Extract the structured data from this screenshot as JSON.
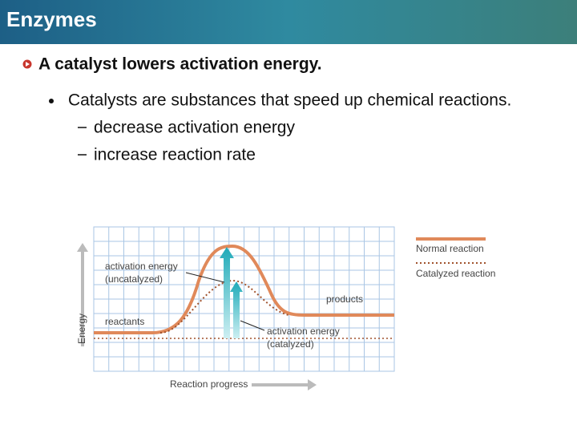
{
  "header": {
    "title": "Enzymes"
  },
  "heading": "A catalyst lowers activation energy.",
  "bullets": [
    {
      "text": "Catalysts are substances that speed up chemical reactions.",
      "sub": [
        "decrease activation energy",
        "increase reaction rate"
      ]
    }
  ],
  "figure": {
    "y_axis": "Energy",
    "x_axis": "Reaction progress",
    "uncatalyzed_label": [
      "activation energy",
      "(uncatalyzed)"
    ],
    "reactants": "reactants",
    "products": "products",
    "catalyzed_label": [
      "activation energy",
      "(catalyzed)"
    ],
    "legend": [
      "Normal reaction",
      "Catalyzed reaction"
    ]
  }
}
